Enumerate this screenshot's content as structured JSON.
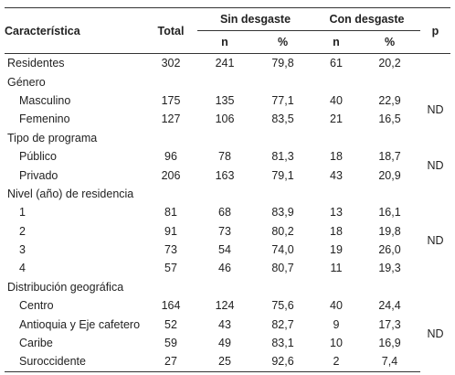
{
  "headers": {
    "caracteristica": "Característica",
    "total": "Total",
    "sin_desgaste": "Sin desgaste",
    "con_desgaste": "Con desgaste",
    "p": "p",
    "n": "n",
    "pct": "%"
  },
  "residentes": {
    "label": "Residentes",
    "total": "302",
    "sin_n": "241",
    "sin_pct": "79,8",
    "con_n": "61",
    "con_pct": "20,2"
  },
  "genero": {
    "label": "Género",
    "p": "ND",
    "rows": [
      {
        "label": "Masculino",
        "total": "175",
        "sin_n": "135",
        "sin_pct": "77,1",
        "con_n": "40",
        "con_pct": "22,9"
      },
      {
        "label": "Femenino",
        "total": "127",
        "sin_n": "106",
        "sin_pct": "83,5",
        "con_n": "21",
        "con_pct": "16,5"
      }
    ]
  },
  "programa": {
    "label": "Tipo de programa",
    "p": "ND",
    "rows": [
      {
        "label": "Público",
        "total": "96",
        "sin_n": "78",
        "sin_pct": "81,3",
        "con_n": "18",
        "con_pct": "18,7"
      },
      {
        "label": "Privado",
        "total": "206",
        "sin_n": "163",
        "sin_pct": "79,1",
        "con_n": "43",
        "con_pct": "20,9"
      }
    ]
  },
  "nivel": {
    "label": "Nivel (año) de residencia",
    "p": "ND",
    "rows": [
      {
        "label": "1",
        "total": "81",
        "sin_n": "68",
        "sin_pct": "83,9",
        "con_n": "13",
        "con_pct": "16,1"
      },
      {
        "label": "2",
        "total": "91",
        "sin_n": "73",
        "sin_pct": "80,2",
        "con_n": "18",
        "con_pct": "19,8"
      },
      {
        "label": "3",
        "total": "73",
        "sin_n": "54",
        "sin_pct": "74,0",
        "con_n": "19",
        "con_pct": "26,0"
      },
      {
        "label": "4",
        "total": "57",
        "sin_n": "46",
        "sin_pct": "80,7",
        "con_n": "11",
        "con_pct": "19,3"
      }
    ]
  },
  "distribucion": {
    "label": "Distribución geográfica",
    "p": "ND",
    "rows": [
      {
        "label": "Centro",
        "total": "164",
        "sin_n": "124",
        "sin_pct": "75,6",
        "con_n": "40",
        "con_pct": "24,4"
      },
      {
        "label": "Antioquia y Eje cafetero",
        "total": "52",
        "sin_n": "43",
        "sin_pct": "82,7",
        "con_n": "9",
        "con_pct": "17,3"
      },
      {
        "label": "Caribe",
        "total": "59",
        "sin_n": "49",
        "sin_pct": "83,1",
        "con_n": "10",
        "con_pct": "16,9"
      },
      {
        "label": "Suroccidente",
        "total": "27",
        "sin_n": "25",
        "sin_pct": "92,6",
        "con_n": "2",
        "con_pct": "7,4"
      }
    ]
  }
}
